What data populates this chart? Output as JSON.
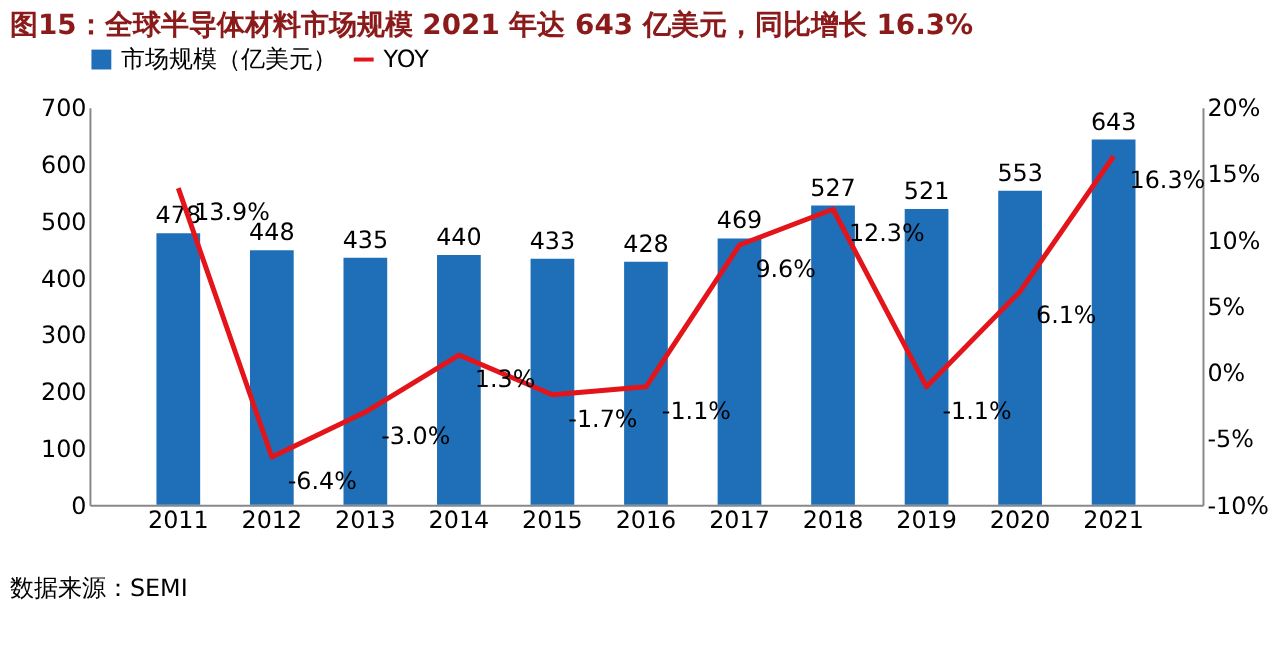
{
  "chart_data": {
    "type": "bar",
    "title": "图15：全球半导体材料市场规模 2021 年达 643 亿美元，同比增长 16.3%",
    "categories": [
      "2011",
      "2012",
      "2013",
      "2014",
      "2015",
      "2016",
      "2017",
      "2018",
      "2019",
      "2020",
      "2021"
    ],
    "series": [
      {
        "name": "市场规模（亿美元）",
        "color": "#1f6fb8",
        "values": [
          478,
          448,
          435,
          440,
          433,
          428,
          469,
          527,
          521,
          553,
          643
        ]
      },
      {
        "name": "YOY",
        "type": "line",
        "axis": "y2",
        "color": "#e3151b",
        "values": [
          13.9,
          -6.4,
          -3.0,
          1.3,
          -1.7,
          -1.1,
          9.6,
          12.3,
          -1.1,
          6.1,
          16.3
        ],
        "value_labels": [
          "13.9%",
          "-6.4%",
          "-3.0%",
          "1.3%",
          "-1.7%",
          "-1.1%",
          "9.6%",
          "12.3%",
          "-1.1%",
          "6.1%",
          "16.3%"
        ]
      }
    ],
    "data_labels": true,
    "ylim": [
      0,
      700
    ],
    "yticks": [
      0,
      100,
      200,
      300,
      400,
      500,
      600,
      700
    ],
    "y2lim": [
      -10,
      20
    ],
    "y2ticks": [
      {
        "value": -10,
        "label": "-10%"
      },
      {
        "value": -5,
        "label": "-5%"
      },
      {
        "value": 0,
        "label": "0%"
      },
      {
        "value": 5,
        "label": "5%"
      },
      {
        "value": 10,
        "label": "10%"
      },
      {
        "value": 15,
        "label": "15%"
      },
      {
        "value": 20,
        "label": "20%"
      }
    ],
    "grid": false,
    "legend": "top",
    "annotations": [
      "数据来源：SEMI"
    ]
  }
}
